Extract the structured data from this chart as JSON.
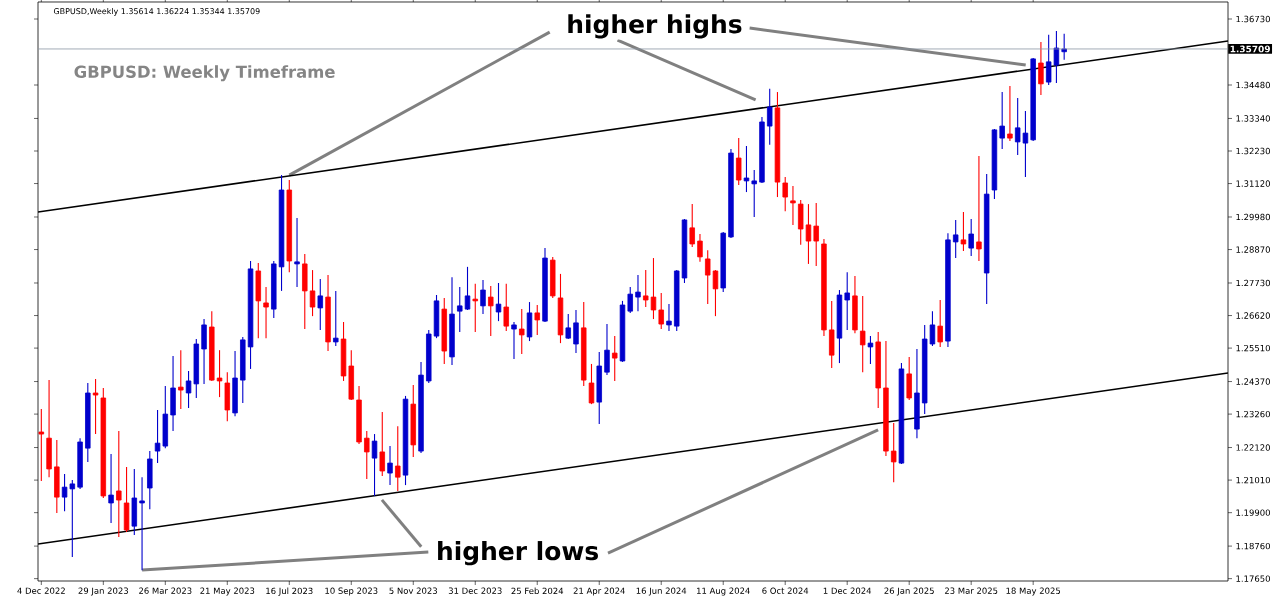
{
  "chart_data": {
    "type": "candlestick",
    "title": "GBPUSD: Weekly Timeframe",
    "annotations": [
      "GBPUSD,Weekly  1.35614 1.36224 1.35344 1.35709",
      {
        "text": "higher highs",
        "x": "2023-07-16",
        "y": 1.3141
      },
      {
        "text": "higher lows",
        "x": "2023-03-05",
        "y": 1.1794
      }
    ],
    "x": [
      "2022-12-04",
      "2022-12-11",
      "2022-12-18",
      "2022-12-25",
      "2023-01-01",
      "2023-01-08",
      "2023-01-15",
      "2023-01-22",
      "2023-01-29",
      "2023-02-05",
      "2023-02-12",
      "2023-02-19",
      "2023-02-26",
      "2023-03-05",
      "2023-03-12",
      "2023-03-19",
      "2023-03-26",
      "2023-04-02",
      "2023-04-09",
      "2023-04-16",
      "2023-04-23",
      "2023-04-30",
      "2023-05-07",
      "2023-05-14",
      "2023-05-21",
      "2023-05-28",
      "2023-06-04",
      "2023-06-11",
      "2023-06-18",
      "2023-06-25",
      "2023-07-02",
      "2023-07-09",
      "2023-07-16",
      "2023-07-23",
      "2023-07-30",
      "2023-08-06",
      "2023-08-13",
      "2023-08-20",
      "2023-08-27",
      "2023-09-03",
      "2023-09-10",
      "2023-09-17",
      "2023-09-24",
      "2023-10-01",
      "2023-10-08",
      "2023-10-15",
      "2023-10-22",
      "2023-10-29",
      "2023-11-05",
      "2023-11-12",
      "2023-11-19",
      "2023-11-26",
      "2023-12-03",
      "2023-12-10",
      "2023-12-17",
      "2023-12-24",
      "2023-12-31",
      "2024-01-07",
      "2024-01-14",
      "2024-01-21",
      "2024-01-28",
      "2024-02-04",
      "2024-02-11",
      "2024-02-18",
      "2024-02-25",
      "2024-03-03",
      "2024-03-10",
      "2024-03-17",
      "2024-03-24",
      "2024-03-31",
      "2024-04-07",
      "2024-04-14",
      "2024-04-21",
      "2024-04-28",
      "2024-05-05",
      "2024-05-12",
      "2024-05-19",
      "2024-05-26",
      "2024-06-02",
      "2024-06-09",
      "2024-06-16",
      "2024-06-23",
      "2024-06-30",
      "2024-07-07",
      "2024-07-14",
      "2024-07-21",
      "2024-07-28",
      "2024-08-04",
      "2024-08-11",
      "2024-08-18",
      "2024-08-25",
      "2024-09-01",
      "2024-09-08",
      "2024-09-15",
      "2024-09-22",
      "2024-09-29",
      "2024-10-06",
      "2024-10-13",
      "2024-10-20",
      "2024-10-27",
      "2024-11-03",
      "2024-11-10",
      "2024-11-17",
      "2024-11-24",
      "2024-12-01",
      "2024-12-08",
      "2024-12-15",
      "2024-12-22",
      "2024-12-29",
      "2025-01-05",
      "2025-01-12",
      "2025-01-19",
      "2025-01-26",
      "2025-02-02",
      "2025-02-09",
      "2025-02-16",
      "2025-02-23",
      "2025-03-02",
      "2025-03-09",
      "2025-03-16",
      "2025-03-23",
      "2025-03-30",
      "2025-04-06",
      "2025-04-13",
      "2025-04-20",
      "2025-04-27",
      "2025-05-04",
      "2025-05-11",
      "2025-05-18",
      "2025-05-25",
      "2025-06-01",
      "2025-06-08",
      "2025-06-15"
    ],
    "ohlc": [
      [
        1.2265,
        1.2343,
        1.2098,
        1.2258
      ],
      [
        1.2244,
        1.2442,
        1.2111,
        1.2139
      ],
      [
        1.2146,
        1.2238,
        1.1989,
        1.2043
      ],
      [
        1.2043,
        1.2122,
        1.1995,
        1.2077
      ],
      [
        1.2071,
        1.2101,
        1.1839,
        1.2088
      ],
      [
        1.2077,
        1.2244,
        1.2071,
        1.2231
      ],
      [
        1.221,
        1.2432,
        1.2163,
        1.2398
      ],
      [
        1.2398,
        1.2446,
        1.2258,
        1.2391
      ],
      [
        1.2381,
        1.2415,
        1.204,
        1.2047
      ],
      [
        1.2023,
        1.219,
        1.1955,
        1.205
      ],
      [
        1.2064,
        1.2268,
        1.1907,
        1.2033
      ],
      [
        1.2023,
        1.2146,
        1.1924,
        1.1931
      ],
      [
        1.1944,
        1.2139,
        1.1914,
        1.204
      ],
      [
        1.2023,
        1.2111,
        1.1794,
        1.203
      ],
      [
        1.2074,
        1.22,
        1.2002,
        1.2173
      ],
      [
        1.22,
        1.234,
        1.2159,
        1.2227
      ],
      [
        1.2217,
        1.2422,
        1.221,
        1.2326
      ],
      [
        1.2323,
        1.2524,
        1.2268,
        1.2415
      ],
      [
        1.2418,
        1.2544,
        1.2343,
        1.2408
      ],
      [
        1.2398,
        1.2473,
        1.2347,
        1.2439
      ],
      [
        1.2429,
        1.2582,
        1.2381,
        1.2565
      ],
      [
        1.2548,
        1.265,
        1.2429,
        1.263
      ],
      [
        1.2623,
        1.2677,
        1.2439,
        1.2442
      ],
      [
        1.2449,
        1.2544,
        1.2384,
        1.2439
      ],
      [
        1.2432,
        1.2469,
        1.2302,
        1.234
      ],
      [
        1.233,
        1.2541,
        1.2319,
        1.2449
      ],
      [
        1.2442,
        1.2589,
        1.2364,
        1.2579
      ],
      [
        1.2555,
        1.2848,
        1.248,
        1.2821
      ],
      [
        1.2814,
        1.2841,
        1.2585,
        1.2712
      ],
      [
        1.2705,
        1.2759,
        1.2585,
        1.2691
      ],
      [
        1.2684,
        1.2848,
        1.2654,
        1.2838
      ],
      [
        1.2828,
        1.3141,
        1.2746,
        1.309
      ],
      [
        1.309,
        1.3124,
        1.281,
        1.2848
      ],
      [
        1.2838,
        1.2995,
        1.2759,
        1.2845
      ],
      [
        1.2838,
        1.2872,
        1.2616,
        1.2746
      ],
      [
        1.2746,
        1.2817,
        1.266,
        1.2691
      ],
      [
        1.2688,
        1.2787,
        1.2613,
        1.2729
      ],
      [
        1.2725,
        1.28,
        1.2541,
        1.2572
      ],
      [
        1.2572,
        1.2746,
        1.2558,
        1.2585
      ],
      [
        1.2582,
        1.264,
        1.2439,
        1.2456
      ],
      [
        1.249,
        1.2544,
        1.2374,
        1.2377
      ],
      [
        1.2374,
        1.2422,
        1.2224,
        1.2231
      ],
      [
        1.2244,
        1.2268,
        1.2105,
        1.2197
      ],
      [
        1.2176,
        1.2258,
        1.2047,
        1.2234
      ],
      [
        1.2197,
        1.2333,
        1.2115,
        1.2132
      ],
      [
        1.2125,
        1.2217,
        1.2084,
        1.2159
      ],
      [
        1.2149,
        1.2285,
        1.2064,
        1.2111
      ],
      [
        1.2118,
        1.2388,
        1.2084,
        1.2377
      ],
      [
        1.236,
        1.2425,
        1.218,
        1.2221
      ],
      [
        1.22,
        1.2504,
        1.2193,
        1.2459
      ],
      [
        1.2439,
        1.2613,
        1.2432,
        1.2599
      ],
      [
        1.2592,
        1.2732,
        1.2585,
        1.2712
      ],
      [
        1.2684,
        1.2722,
        1.2497,
        1.2541
      ],
      [
        1.2521,
        1.2793,
        1.2493,
        1.2667
      ],
      [
        1.2677,
        1.2759,
        1.2606,
        1.2695
      ],
      [
        1.2684,
        1.2828,
        1.2681,
        1.2729
      ],
      [
        1.2718,
        1.277,
        1.2606,
        1.2712
      ],
      [
        1.2695,
        1.2783,
        1.2667,
        1.2749
      ],
      [
        1.2725,
        1.2763,
        1.2592,
        1.2695
      ],
      [
        1.2674,
        1.2773,
        1.2643,
        1.2701
      ],
      [
        1.2691,
        1.277,
        1.2609,
        1.2626
      ],
      [
        1.2616,
        1.264,
        1.2514,
        1.263
      ],
      [
        1.2616,
        1.2684,
        1.2531,
        1.2596
      ],
      [
        1.2589,
        1.2708,
        1.2575,
        1.2671
      ],
      [
        1.2671,
        1.2698,
        1.2596,
        1.2647
      ],
      [
        1.2643,
        1.2892,
        1.264,
        1.2858
      ],
      [
        1.2851,
        1.2862,
        1.2722,
        1.2729
      ],
      [
        1.2722,
        1.2804,
        1.2568,
        1.2596
      ],
      [
        1.2585,
        1.2667,
        1.2582,
        1.262
      ],
      [
        1.2565,
        1.2681,
        1.2534,
        1.2637
      ],
      [
        1.262,
        1.2708,
        1.2422,
        1.2442
      ],
      [
        1.2432,
        1.2497,
        1.236,
        1.2364
      ],
      [
        1.2367,
        1.2538,
        1.2292,
        1.249
      ],
      [
        1.2469,
        1.2633,
        1.2459,
        1.2544
      ],
      [
        1.2534,
        1.2592,
        1.2439,
        1.2517
      ],
      [
        1.2507,
        1.2712,
        1.2504,
        1.2698
      ],
      [
        1.2677,
        1.2759,
        1.2671,
        1.2735
      ],
      [
        1.2725,
        1.28,
        1.2677,
        1.2742
      ],
      [
        1.2729,
        1.2817,
        1.2691,
        1.2715
      ],
      [
        1.2725,
        1.2858,
        1.265,
        1.2681
      ],
      [
        1.2681,
        1.2739,
        1.2616,
        1.2633
      ],
      [
        1.263,
        1.2701,
        1.2609,
        1.2643
      ],
      [
        1.2626,
        1.2817,
        1.2609,
        1.2814
      ],
      [
        1.279,
        1.2991,
        1.2773,
        1.2988
      ],
      [
        1.2961,
        1.3042,
        1.2896,
        1.2906
      ],
      [
        1.2916,
        1.294,
        1.2845,
        1.2862
      ],
      [
        1.2855,
        1.2885,
        1.2701,
        1.28
      ],
      [
        1.2814,
        1.2817,
        1.266,
        1.2753
      ],
      [
        1.2756,
        1.2947,
        1.2742,
        1.2943
      ],
      [
        1.293,
        1.323,
        1.2926,
        1.3216
      ],
      [
        1.3199,
        1.3267,
        1.3107,
        1.3124
      ],
      [
        1.3121,
        1.324,
        1.3083,
        1.3131
      ],
      [
        1.3111,
        1.3158,
        1.2998,
        1.3121
      ],
      [
        1.3117,
        1.3339,
        1.3114,
        1.3322
      ],
      [
        1.3308,
        1.3435,
        1.3244,
        1.3373
      ],
      [
        1.337,
        1.3424,
        1.3066,
        1.3117
      ],
      [
        1.3114,
        1.3134,
        1.3018,
        1.3066
      ],
      [
        1.3053,
        1.3104,
        1.2971,
        1.3046
      ],
      [
        1.3042,
        1.3056,
        1.2903,
        1.2957
      ],
      [
        1.2971,
        1.3042,
        1.2838,
        1.2916
      ],
      [
        1.2967,
        1.3046,
        1.2831,
        1.2916
      ],
      [
        1.2906,
        1.2923,
        1.2592,
        1.2613
      ],
      [
        1.2613,
        1.2712,
        1.2483,
        1.2527
      ],
      [
        1.2585,
        1.2749,
        1.25,
        1.2732
      ],
      [
        1.2715,
        1.281,
        1.2613,
        1.2739
      ],
      [
        1.2729,
        1.2797,
        1.2602,
        1.2613
      ],
      [
        1.2609,
        1.2729,
        1.2469,
        1.2562
      ],
      [
        1.2555,
        1.2592,
        1.2497,
        1.2568
      ],
      [
        1.2572,
        1.2606,
        1.2347,
        1.2415
      ],
      [
        1.2415,
        1.2575,
        1.2183,
        1.22
      ],
      [
        1.22,
        1.2296,
        1.2094,
        1.2163
      ],
      [
        1.2159,
        1.25,
        1.2156,
        1.248
      ],
      [
        1.2463,
        1.2521,
        1.2374,
        1.2381
      ],
      [
        1.2275,
        1.2548,
        1.2244,
        1.2398
      ],
      [
        1.2364,
        1.263,
        1.2326,
        1.2582
      ],
      [
        1.2565,
        1.2677,
        1.2558,
        1.263
      ],
      [
        1.2626,
        1.2715,
        1.2555,
        1.2572
      ],
      [
        1.2575,
        1.2943,
        1.2555,
        1.292
      ],
      [
        1.2913,
        1.2988,
        1.2858,
        1.2937
      ],
      [
        1.292,
        1.3015,
        1.2882,
        1.2906
      ],
      [
        1.2892,
        1.2991,
        1.2865,
        1.294
      ],
      [
        1.2913,
        1.3206,
        1.2848,
        1.2889
      ],
      [
        1.2807,
        1.3145,
        1.2701,
        1.3076
      ],
      [
        1.309,
        1.3298,
        1.3059,
        1.3295
      ],
      [
        1.3267,
        1.3424,
        1.323,
        1.3308
      ],
      [
        1.3281,
        1.3445,
        1.3257,
        1.3267
      ],
      [
        1.3254,
        1.3404,
        1.3209,
        1.3302
      ],
      [
        1.325,
        1.3359,
        1.3134,
        1.3284
      ],
      [
        1.3261,
        1.354,
        1.3257,
        1.3537
      ],
      [
        1.3523,
        1.3595,
        1.3414,
        1.3452
      ],
      [
        1.3458,
        1.3619,
        1.3448,
        1.3527
      ],
      [
        1.3516,
        1.3632,
        1.3455,
        1.3574
      ],
      [
        1.35614,
        1.36224,
        1.35344,
        1.35709
      ]
    ],
    "colors": [
      "#ff0000",
      "#ff0000",
      "#ff0000",
      "#0000cc",
      "#0000cc",
      "#0000cc",
      "#0000cc",
      "#ff0000",
      "#ff0000",
      "#0000cc",
      "#ff0000",
      "#ff0000",
      "#0000cc",
      "#0000cc",
      "#0000cc",
      "#0000cc",
      "#0000cc",
      "#0000cc",
      "#ff0000",
      "#0000cc",
      "#0000cc",
      "#0000cc",
      "#ff0000",
      "#ff0000",
      "#ff0000",
      "#0000cc",
      "#0000cc",
      "#0000cc",
      "#ff0000",
      "#ff0000",
      "#0000cc",
      "#0000cc",
      "#ff0000",
      "#0000cc",
      "#ff0000",
      "#ff0000",
      "#0000cc",
      "#ff0000",
      "#0000cc",
      "#ff0000",
      "#ff0000",
      "#ff0000",
      "#ff0000",
      "#0000cc",
      "#ff0000",
      "#0000cc",
      "#ff0000",
      "#0000cc",
      "#ff0000",
      "#0000cc",
      "#0000cc",
      "#0000cc",
      "#ff0000",
      "#0000cc",
      "#0000cc",
      "#0000cc",
      "#ff0000",
      "#0000cc",
      "#ff0000",
      "#0000cc",
      "#ff0000",
      "#0000cc",
      "#ff0000",
      "#0000cc",
      "#ff0000",
      "#0000cc",
      "#ff0000",
      "#ff0000",
      "#0000cc",
      "#0000cc",
      "#ff0000",
      "#ff0000",
      "#0000cc",
      "#0000cc",
      "#ff0000",
      "#0000cc",
      "#0000cc",
      "#0000cc",
      "#ff0000",
      "#ff0000",
      "#ff0000",
      "#0000cc",
      "#0000cc",
      "#0000cc",
      "#ff0000",
      "#ff0000",
      "#ff0000",
      "#ff0000",
      "#0000cc",
      "#0000cc",
      "#ff0000",
      "#0000cc",
      "#0000cc",
      "#0000cc",
      "#0000cc",
      "#ff0000",
      "#ff0000",
      "#ff0000",
      "#ff0000",
      "#ff0000",
      "#ff0000",
      "#ff0000",
      "#ff0000",
      "#0000cc",
      "#0000cc",
      "#ff0000",
      "#ff0000",
      "#0000cc",
      "#ff0000",
      "#ff0000",
      "#ff0000",
      "#0000cc",
      "#ff0000",
      "#0000cc",
      "#0000cc",
      "#0000cc",
      "#ff0000",
      "#0000cc",
      "#0000cc",
      "#ff0000",
      "#0000cc",
      "#ff0000",
      "#0000cc",
      "#0000cc",
      "#0000cc",
      "#ff0000",
      "#0000cc",
      "#0000cc",
      "#0000cc",
      "#ff0000",
      "#0000cc",
      "#0000cc",
      "#0000cc"
    ],
    "series": [
      {
        "type": "line",
        "color": "#000000",
        "x": [
          "2022-12-01",
          "2025-11-10"
        ],
        "values": [
          1.3015,
          1.3598
        ]
      },
      {
        "type": "line",
        "color": "#000000",
        "x": [
          "2022-12-01",
          "2025-11-10"
        ],
        "values": [
          1.1883,
          1.2466
        ]
      }
    ],
    "ref_lines": [
      {
        "axis": "y",
        "value": 1.35709,
        "label": "1.35709",
        "color": "#8a96a3"
      }
    ],
    "xlim": [
      "2022-12-01",
      "2025-11-10"
    ],
    "ylim": [
      1.1757,
      1.3731
    ],
    "xticks": [
      {
        "value": "2022-12-04",
        "label": "4 Dec 2022"
      },
      {
        "value": "2023-01-29",
        "label": "29 Jan 2023"
      },
      {
        "value": "2023-03-26",
        "label": "26 Mar 2023"
      },
      {
        "value": "2023-05-21",
        "label": "21 May 2023"
      },
      {
        "value": "2023-07-16",
        "label": "16 Jul 2023"
      },
      {
        "value": "2023-09-10",
        "label": "10 Sep 2023"
      },
      {
        "value": "2023-11-05",
        "label": "5 Nov 2023"
      },
      {
        "value": "2023-12-31",
        "label": "31 Dec 2023"
      },
      {
        "value": "2024-02-25",
        "label": "25 Feb 2024"
      },
      {
        "value": "2024-04-21",
        "label": "21 Apr 2024"
      },
      {
        "value": "2024-06-16",
        "label": "16 Jun 2024"
      },
      {
        "value": "2024-08-11",
        "label": "11 Aug 2024"
      },
      {
        "value": "2024-10-06",
        "label": "6 Oct 2024"
      },
      {
        "value": "2024-12-01",
        "label": "1 Dec 2024"
      },
      {
        "value": "2025-01-26",
        "label": "26 Jan 2025"
      },
      {
        "value": "2025-03-23",
        "label": "23 Mar 2025"
      },
      {
        "value": "2025-05-18",
        "label": "18 May 2025"
      }
    ],
    "yticks": [
      {
        "value": 1.3673,
        "label": "1.36730"
      },
      {
        "value": 1.3448,
        "label": "1.34480"
      },
      {
        "value": 1.3334,
        "label": "1.33340"
      },
      {
        "value": 1.3223,
        "label": "1.32230"
      },
      {
        "value": 1.3112,
        "label": "1.31120"
      },
      {
        "value": 1.2998,
        "label": "1.29980"
      },
      {
        "value": 1.2887,
        "label": "1.28870"
      },
      {
        "value": 1.2773,
        "label": "1.27730"
      },
      {
        "value": 1.2662,
        "label": "1.26620"
      },
      {
        "value": 1.2551,
        "label": "1.25510"
      },
      {
        "value": 1.2437,
        "label": "1.24370"
      },
      {
        "value": 1.2326,
        "label": "1.23260"
      },
      {
        "value": 1.2212,
        "label": "1.22120"
      },
      {
        "value": 1.2101,
        "label": "1.21010"
      },
      {
        "value": 1.199,
        "label": "1.19900"
      },
      {
        "value": 1.1876,
        "label": "1.18760"
      },
      {
        "value": 1.1765,
        "label": "1.17650"
      }
    ]
  }
}
